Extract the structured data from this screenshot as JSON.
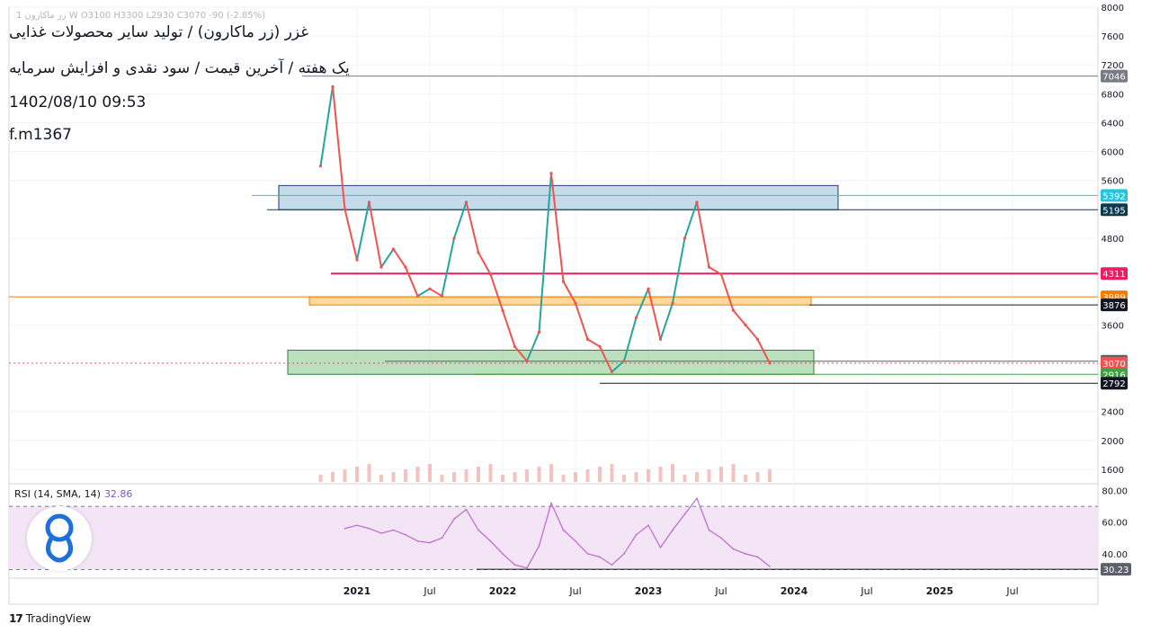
{
  "header": {
    "title": "غزر (زر ماکارون) / تولید سایر محصولات غذایی",
    "subtitle": "یک هفته / آخرین قیمت / سود نقدی و افزایش سرمایه",
    "date": "1402/08/10 09:53",
    "author": "f.m1367",
    "ohlc_faint": "1 زر ماکارون W O3100 H3300 L2930 C3070 -90 (-2.85%)"
  },
  "footer": {
    "brand_mark": "17",
    "brand": "TradingView"
  },
  "colors": {
    "up": "#26a69a",
    "down": "#ef5350",
    "rsi_line": "#ba68c8",
    "rsi_band": "#f3e5f5",
    "resistance_zone": "#b3cfe0",
    "support_zone": "#a5d6a7",
    "mid_zone": "#ffcc80",
    "magenta_line": "#c2185b",
    "orange_line": "#f57c00",
    "cyan_line": "#4dd0e1"
  },
  "chart_data": [
    {
      "type": "line",
      "title": "غزر (زر ماکارون) / تولید سایر محصولات غذایی",
      "timeframe": "یک هفته",
      "x_ticks": [
        "2021",
        "Jul",
        "2022",
        "Jul",
        "2023",
        "Jul",
        "2024",
        "Jul",
        "2025",
        "Jul"
      ],
      "y_ticks": [
        "8000",
        "7600",
        "7200",
        "6800",
        "6400",
        "6000",
        "5600",
        "4800",
        "3600",
        "2400",
        "2000",
        "1600"
      ],
      "ylim": [
        1400,
        8000
      ],
      "price_labels": [
        {
          "value": "7046",
          "color": "#787b86"
        },
        {
          "value": "5392",
          "color": "#26c6da"
        },
        {
          "value": "5195",
          "color": "#0d3a4f"
        },
        {
          "value": "4311",
          "color": "#e91e63"
        },
        {
          "value": "3989",
          "color": "#f57c00"
        },
        {
          "value": "3876",
          "color": "#131722"
        },
        {
          "value": "3096",
          "color": "#5d606b"
        },
        {
          "value": "3070",
          "color": "#ef5350"
        },
        {
          "value": "2916",
          "color": "#43a047"
        },
        {
          "value": "2792",
          "color": "#131722"
        }
      ],
      "zones": [
        {
          "name": "resistance",
          "from": 5195,
          "to": 5530
        },
        {
          "name": "middle",
          "from": 3876,
          "to": 3989
        },
        {
          "name": "support",
          "from": 2916,
          "to": 3250
        }
      ],
      "series": [
        {
          "name": "",
          "points": [
            [
              "2020-10",
              5800
            ],
            [
              "2020-11",
              6900
            ],
            [
              "2020-12",
              5200
            ],
            [
              "2021-01",
              4500
            ],
            [
              "2021-02",
              5300
            ],
            [
              "2021-03",
              4400
            ],
            [
              "2021-04",
              4650
            ],
            [
              "2021-05",
              4400
            ],
            [
              "2021-06",
              4000
            ],
            [
              "2021-07",
              4100
            ],
            [
              "2021-08",
              4000
            ],
            [
              "2021-09",
              4800
            ],
            [
              "2021-10",
              5300
            ],
            [
              "2021-11",
              4600
            ],
            [
              "2021-12",
              4300
            ],
            [
              "2022-01",
              3800
            ],
            [
              "2022-02",
              3300
            ],
            [
              "2022-03",
              3100
            ],
            [
              "2022-04",
              3500
            ],
            [
              "2022-05",
              5700
            ],
            [
              "2022-06",
              4200
            ],
            [
              "2022-07",
              3900
            ],
            [
              "2022-08",
              3400
            ],
            [
              "2022-09",
              3300
            ],
            [
              "2022-10",
              2950
            ],
            [
              "2022-11",
              3100
            ],
            [
              "2022-12",
              3700
            ],
            [
              "2023-01",
              4100
            ],
            [
              "2023-02",
              3400
            ],
            [
              "2023-03",
              3900
            ],
            [
              "2023-04",
              4800
            ],
            [
              "2023-05",
              5300
            ],
            [
              "2023-06",
              4400
            ],
            [
              "2023-07",
              4300
            ],
            [
              "2023-08",
              3800
            ],
            [
              "2023-09",
              3600
            ],
            [
              "2023-10",
              3400
            ],
            [
              "2023-11",
              3070
            ]
          ]
        }
      ]
    },
    {
      "type": "line",
      "title": "RSI (14, SMA, 14)",
      "last_value": "32.86",
      "y_ticks": [
        "80.00",
        "60.00",
        "40.00"
      ],
      "band": [
        30,
        70
      ],
      "ylim": [
        28,
        82
      ],
      "current_label": "30.23",
      "series": [
        {
          "name": "RSI",
          "points": [
            [
              "2020-12",
              56
            ],
            [
              "2021-01",
              58
            ],
            [
              "2021-02",
              56
            ],
            [
              "2021-03",
              53
            ],
            [
              "2021-04",
              55
            ],
            [
              "2021-05",
              52
            ],
            [
              "2021-06",
              48
            ],
            [
              "2021-07",
              47
            ],
            [
              "2021-08",
              50
            ],
            [
              "2021-09",
              62
            ],
            [
              "2021-10",
              68
            ],
            [
              "2021-11",
              55
            ],
            [
              "2021-12",
              48
            ],
            [
              "2022-01",
              40
            ],
            [
              "2022-02",
              33
            ],
            [
              "2022-03",
              31
            ],
            [
              "2022-04",
              45
            ],
            [
              "2022-05",
              72
            ],
            [
              "2022-06",
              55
            ],
            [
              "2022-07",
              48
            ],
            [
              "2022-08",
              40
            ],
            [
              "2022-09",
              38
            ],
            [
              "2022-10",
              33
            ],
            [
              "2022-11",
              40
            ],
            [
              "2022-12",
              52
            ],
            [
              "2023-01",
              58
            ],
            [
              "2023-02",
              44
            ],
            [
              "2023-03",
              55
            ],
            [
              "2023-04",
              65
            ],
            [
              "2023-05",
              75
            ],
            [
              "2023-06",
              55
            ],
            [
              "2023-07",
              50
            ],
            [
              "2023-08",
              43
            ],
            [
              "2023-09",
              40
            ],
            [
              "2023-10",
              38
            ],
            [
              "2023-11",
              32
            ]
          ]
        }
      ]
    }
  ]
}
